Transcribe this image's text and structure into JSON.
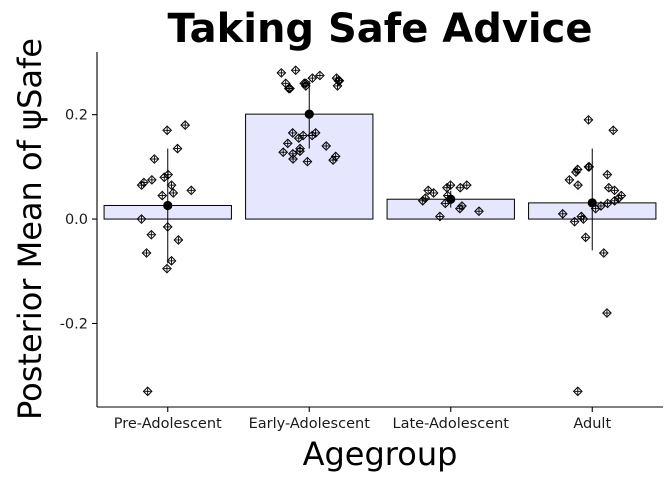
{
  "chart_data": {
    "type": "bar",
    "title": "Taking Safe Advice",
    "xlabel": "Agegroup",
    "ylabel": "Posterior Mean of ψSafe",
    "ylim": [
      -0.36,
      0.32
    ],
    "yticks": [
      0.2,
      0.0,
      -0.2
    ],
    "ytick_labels": [
      "0.2",
      "0.0",
      "-0.2"
    ],
    "grid": false,
    "colors": {
      "bar_fill": "#e6e6ff",
      "stroke": "#000000"
    },
    "categories": [
      "Pre-Adolescent",
      "Early-Adolescent",
      "Late-Adolescent",
      "Adult"
    ],
    "values": [
      0.026,
      0.201,
      0.038,
      0.031
    ],
    "error_bars": [
      [
        -0.085,
        0.135
      ],
      [
        0.135,
        0.265
      ],
      [
        0.022,
        0.054
      ],
      [
        -0.06,
        0.135
      ]
    ],
    "points": [
      [
        0.17,
        0.065,
        0.07,
        0.075,
        0.08,
        0.085,
        0.065,
        0.055,
        0.05,
        0.045,
        0.115,
        0.18,
        0.135,
        0.0,
        -0.015,
        -0.03,
        -0.04,
        -0.065,
        -0.08,
        -0.095,
        -0.33
      ],
      [
        0.28,
        0.27,
        0.265,
        0.26,
        0.255,
        0.255,
        0.25,
        0.26,
        0.27,
        0.275,
        0.285,
        0.25,
        0.265,
        0.26,
        0.165,
        0.16,
        0.155,
        0.145,
        0.14,
        0.135,
        0.13,
        0.128,
        0.12,
        0.115,
        0.113,
        0.11,
        0.125,
        0.165,
        0.16
      ],
      [
        0.065,
        0.06,
        0.055,
        0.05,
        0.045,
        0.04,
        0.035,
        0.03,
        0.025,
        0.02,
        0.015,
        0.005,
        0.06,
        0.065
      ],
      [
        0.19,
        0.17,
        0.1,
        0.1,
        0.095,
        0.09,
        0.085,
        0.075,
        0.065,
        0.06,
        0.055,
        0.045,
        0.04,
        0.035,
        0.03,
        0.025,
        0.02,
        0.01,
        0.005,
        0.0,
        -0.005,
        -0.035,
        -0.065,
        -0.18,
        -0.33
      ]
    ]
  }
}
